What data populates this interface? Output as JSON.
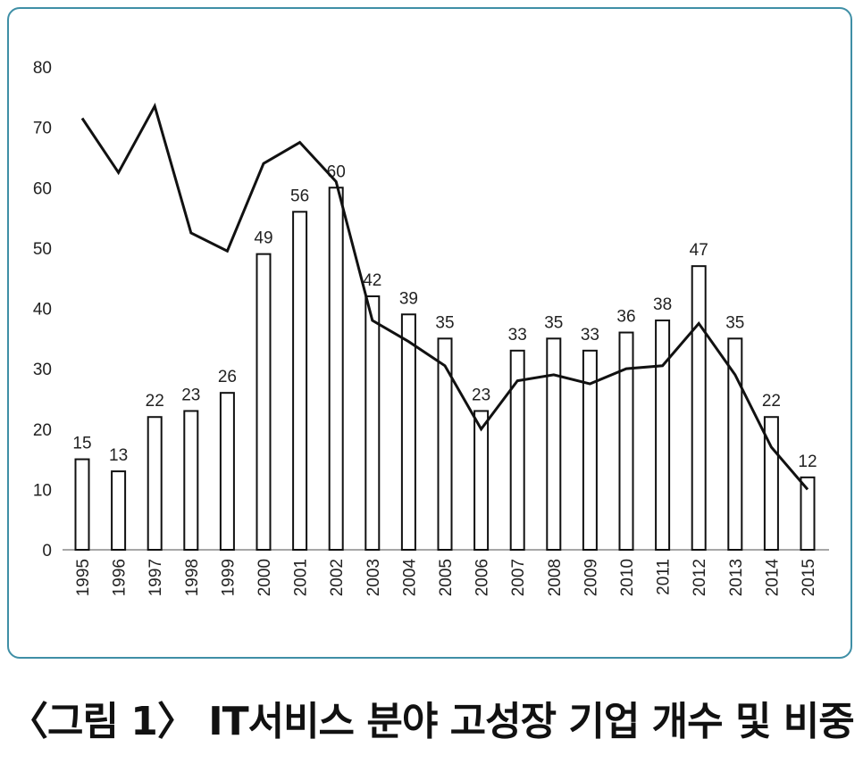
{
  "caption": "〈그림 1〉 IT서비스 분야 고성장 기업 개수 및 비중",
  "chart_data": {
    "type": "bar",
    "categories": [
      "1995",
      "1996",
      "1997",
      "1998",
      "1999",
      "2000",
      "2001",
      "2002",
      "2003",
      "2004",
      "2005",
      "2006",
      "2007",
      "2008",
      "2009",
      "2010",
      "2011",
      "2012",
      "2013",
      "2014",
      "2015"
    ],
    "series": [
      {
        "type": "bar",
        "values": [
          15,
          13,
          22,
          23,
          26,
          49,
          56,
          60,
          42,
          39,
          35,
          23,
          33,
          35,
          33,
          36,
          38,
          47,
          35,
          22,
          12
        ]
      },
      {
        "type": "line",
        "values": [
          71.5,
          62.5,
          73.5,
          52.5,
          49.5,
          64,
          67.5,
          61,
          38,
          34.5,
          30.5,
          20,
          28,
          29,
          27.5,
          30,
          30.5,
          37.5,
          29,
          17,
          10
        ]
      }
    ],
    "ylim": [
      0,
      80
    ],
    "yticks": [
      0,
      10,
      20,
      30,
      40,
      50,
      60,
      70,
      80
    ],
    "grid": false,
    "colors": {
      "bar_fill": "#ffffff",
      "bar_stroke": "#111111",
      "line": "#111111",
      "frame": "#3f8fa6"
    }
  }
}
